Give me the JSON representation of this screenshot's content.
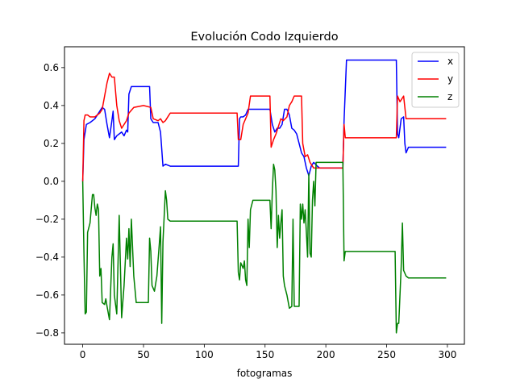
{
  "chart_data": {
    "type": "line",
    "title": "Evolución Codo Izquierdo",
    "xlabel": "fotogramas",
    "ylabel": "",
    "xlim": [
      -15,
      314
    ],
    "ylim": [
      -0.86,
      0.71
    ],
    "xticks": [
      0,
      50,
      100,
      150,
      200,
      250,
      300
    ],
    "yticks": [
      -0.8,
      -0.6,
      -0.4,
      -0.2,
      0.0,
      0.2,
      0.4,
      0.6
    ],
    "xtick_labels": [
      "0",
      "50",
      "100",
      "150",
      "200",
      "250",
      "300"
    ],
    "ytick_labels": [
      "−0.8",
      "−0.6",
      "−0.4",
      "−0.2",
      "0.0",
      "0.2",
      "0.4",
      "0.6"
    ],
    "grid": false,
    "legend_position": "top-right",
    "series": [
      {
        "name": "x",
        "color": "#0000ff",
        "points": [
          [
            0,
            0.0
          ],
          [
            1,
            0.22
          ],
          [
            3,
            0.3
          ],
          [
            6,
            0.31
          ],
          [
            10,
            0.33
          ],
          [
            14,
            0.37
          ],
          [
            16,
            0.39
          ],
          [
            18,
            0.38
          ],
          [
            20,
            0.3
          ],
          [
            22,
            0.23
          ],
          [
            24,
            0.32
          ],
          [
            25,
            0.37
          ],
          [
            26,
            0.22
          ],
          [
            28,
            0.24
          ],
          [
            30,
            0.25
          ],
          [
            32,
            0.26
          ],
          [
            34,
            0.24
          ],
          [
            36,
            0.27
          ],
          [
            37,
            0.26
          ],
          [
            38,
            0.46
          ],
          [
            40,
            0.5
          ],
          [
            50,
            0.5
          ],
          [
            55,
            0.5
          ],
          [
            56,
            0.33
          ],
          [
            58,
            0.31
          ],
          [
            62,
            0.31
          ],
          [
            64,
            0.26
          ],
          [
            66,
            0.08
          ],
          [
            68,
            0.09
          ],
          [
            72,
            0.08
          ],
          [
            128,
            0.08
          ],
          [
            129,
            0.33
          ],
          [
            130,
            0.34
          ],
          [
            132,
            0.34
          ],
          [
            134,
            0.35
          ],
          [
            136,
            0.38
          ],
          [
            140,
            0.38
          ],
          [
            152,
            0.38
          ],
          [
            154,
            0.38
          ],
          [
            156,
            0.3
          ],
          [
            158,
            0.26
          ],
          [
            160,
            0.28
          ],
          [
            162,
            0.28
          ],
          [
            164,
            0.3
          ],
          [
            166,
            0.38
          ],
          [
            168,
            0.38
          ],
          [
            170,
            0.35
          ],
          [
            172,
            0.28
          ],
          [
            174,
            0.27
          ],
          [
            176,
            0.25
          ],
          [
            178,
            0.2
          ],
          [
            180,
            0.15
          ],
          [
            182,
            0.13
          ],
          [
            184,
            0.07
          ],
          [
            186,
            0.03
          ],
          [
            188,
            0.08
          ],
          [
            190,
            0.1
          ],
          [
            193,
            0.08
          ],
          [
            195,
            0.07
          ],
          [
            214,
            0.07
          ],
          [
            215,
            0.32
          ],
          [
            217,
            0.64
          ],
          [
            230,
            0.64
          ],
          [
            258,
            0.64
          ],
          [
            259,
            0.25
          ],
          [
            260,
            0.23
          ],
          [
            262,
            0.33
          ],
          [
            264,
            0.34
          ],
          [
            265,
            0.2
          ],
          [
            266,
            0.15
          ],
          [
            268,
            0.18
          ],
          [
            299,
            0.18
          ]
        ]
      },
      {
        "name": "y",
        "color": "#ff0000",
        "points": [
          [
            0,
            0.0
          ],
          [
            1,
            0.32
          ],
          [
            2,
            0.35
          ],
          [
            4,
            0.35
          ],
          [
            6,
            0.34
          ],
          [
            10,
            0.34
          ],
          [
            14,
            0.36
          ],
          [
            16,
            0.38
          ],
          [
            18,
            0.45
          ],
          [
            20,
            0.52
          ],
          [
            22,
            0.57
          ],
          [
            24,
            0.55
          ],
          [
            26,
            0.55
          ],
          [
            28,
            0.4
          ],
          [
            30,
            0.32
          ],
          [
            32,
            0.28
          ],
          [
            34,
            0.3
          ],
          [
            36,
            0.32
          ],
          [
            38,
            0.36
          ],
          [
            42,
            0.39
          ],
          [
            50,
            0.4
          ],
          [
            56,
            0.39
          ],
          [
            58,
            0.33
          ],
          [
            62,
            0.32
          ],
          [
            64,
            0.33
          ],
          [
            66,
            0.31
          ],
          [
            68,
            0.32
          ],
          [
            70,
            0.34
          ],
          [
            72,
            0.36
          ],
          [
            127,
            0.36
          ],
          [
            128,
            0.22
          ],
          [
            130,
            0.22
          ],
          [
            132,
            0.3
          ],
          [
            134,
            0.33
          ],
          [
            136,
            0.36
          ],
          [
            138,
            0.45
          ],
          [
            140,
            0.45
          ],
          [
            154,
            0.45
          ],
          [
            155,
            0.18
          ],
          [
            157,
            0.22
          ],
          [
            159,
            0.25
          ],
          [
            161,
            0.29
          ],
          [
            163,
            0.33
          ],
          [
            165,
            0.32
          ],
          [
            168,
            0.34
          ],
          [
            170,
            0.4
          ],
          [
            172,
            0.42
          ],
          [
            174,
            0.45
          ],
          [
            180,
            0.45
          ],
          [
            181,
            0.2
          ],
          [
            183,
            0.13
          ],
          [
            185,
            0.14
          ],
          [
            187,
            0.1
          ],
          [
            190,
            0.07
          ],
          [
            195,
            0.07
          ],
          [
            214,
            0.07
          ],
          [
            215,
            0.3
          ],
          [
            216,
            0.23
          ],
          [
            230,
            0.23
          ],
          [
            258,
            0.23
          ],
          [
            259,
            0.45
          ],
          [
            261,
            0.42
          ],
          [
            264,
            0.45
          ],
          [
            266,
            0.33
          ],
          [
            270,
            0.33
          ],
          [
            299,
            0.33
          ]
        ]
      },
      {
        "name": "z",
        "color": "#008000",
        "points": [
          [
            0,
            0.0
          ],
          [
            1,
            -0.38
          ],
          [
            2,
            -0.7
          ],
          [
            3,
            -0.69
          ],
          [
            4,
            -0.27
          ],
          [
            6,
            -0.22
          ],
          [
            8,
            -0.07
          ],
          [
            9,
            -0.07
          ],
          [
            10,
            -0.14
          ],
          [
            11,
            -0.18
          ],
          [
            12,
            -0.12
          ],
          [
            13,
            -0.15
          ],
          [
            14,
            -0.5
          ],
          [
            15,
            -0.46
          ],
          [
            16,
            -0.64
          ],
          [
            18,
            -0.65
          ],
          [
            19,
            -0.62
          ],
          [
            20,
            -0.66
          ],
          [
            22,
            -0.73
          ],
          [
            24,
            -0.4
          ],
          [
            25,
            -0.33
          ],
          [
            26,
            -0.6
          ],
          [
            28,
            -0.7
          ],
          [
            30,
            -0.18
          ],
          [
            31,
            -0.45
          ],
          [
            32,
            -0.72
          ],
          [
            34,
            -0.55
          ],
          [
            36,
            -0.3
          ],
          [
            37,
            -0.41
          ],
          [
            38,
            -0.25
          ],
          [
            39,
            -0.45
          ],
          [
            40,
            -0.2
          ],
          [
            42,
            -0.5
          ],
          [
            44,
            -0.64
          ],
          [
            46,
            -0.64
          ],
          [
            52,
            -0.64
          ],
          [
            54,
            -0.64
          ],
          [
            55,
            -0.3
          ],
          [
            56,
            -0.37
          ],
          [
            57,
            -0.55
          ],
          [
            59,
            -0.58
          ],
          [
            61,
            -0.5
          ],
          [
            63,
            -0.33
          ],
          [
            64,
            -0.24
          ],
          [
            65,
            -0.75
          ],
          [
            66,
            -0.32
          ],
          [
            68,
            -0.05
          ],
          [
            69,
            -0.1
          ],
          [
            70,
            -0.2
          ],
          [
            72,
            -0.21
          ],
          [
            127,
            -0.21
          ],
          [
            128,
            -0.48
          ],
          [
            129,
            -0.52
          ],
          [
            130,
            -0.43
          ],
          [
            132,
            -0.46
          ],
          [
            133,
            -0.42
          ],
          [
            134,
            -0.52
          ],
          [
            135,
            -0.55
          ],
          [
            136,
            -0.2
          ],
          [
            137,
            -0.35
          ],
          [
            138,
            -0.15
          ],
          [
            140,
            -0.1
          ],
          [
            152,
            -0.1
          ],
          [
            154,
            -0.1
          ],
          [
            155,
            -0.25
          ],
          [
            156,
            -0.05
          ],
          [
            157,
            0.09
          ],
          [
            158,
            0.06
          ],
          [
            159,
            -0.05
          ],
          [
            160,
            -0.35
          ],
          [
            161,
            -0.18
          ],
          [
            162,
            -0.3
          ],
          [
            163,
            -0.22
          ],
          [
            164,
            -0.15
          ],
          [
            165,
            -0.5
          ],
          [
            166,
            -0.55
          ],
          [
            168,
            -0.6
          ],
          [
            170,
            -0.67
          ],
          [
            172,
            -0.66
          ],
          [
            173,
            -0.2
          ],
          [
            174,
            -0.66
          ],
          [
            178,
            -0.66
          ],
          [
            179,
            -0.12
          ],
          [
            180,
            -0.2
          ],
          [
            181,
            -0.12
          ],
          [
            182,
            -0.22
          ],
          [
            183,
            -0.15
          ],
          [
            184,
            -0.27
          ],
          [
            185,
            -0.4
          ],
          [
            186,
            0.04
          ],
          [
            187,
            -0.38
          ],
          [
            188,
            -0.4
          ],
          [
            189,
            -0.1
          ],
          [
            190,
            0.0
          ],
          [
            191,
            -0.13
          ],
          [
            192,
            0.1
          ],
          [
            195,
            0.1
          ],
          [
            214,
            0.1
          ],
          [
            215,
            -0.42
          ],
          [
            216,
            -0.37
          ],
          [
            230,
            -0.37
          ],
          [
            257,
            -0.37
          ],
          [
            258,
            -0.8
          ],
          [
            259,
            -0.75
          ],
          [
            260,
            -0.75
          ],
          [
            261,
            -0.6
          ],
          [
            262,
            -0.45
          ],
          [
            263,
            -0.22
          ],
          [
            264,
            -0.47
          ],
          [
            266,
            -0.5
          ],
          [
            268,
            -0.51
          ],
          [
            299,
            -0.51
          ]
        ]
      }
    ]
  }
}
